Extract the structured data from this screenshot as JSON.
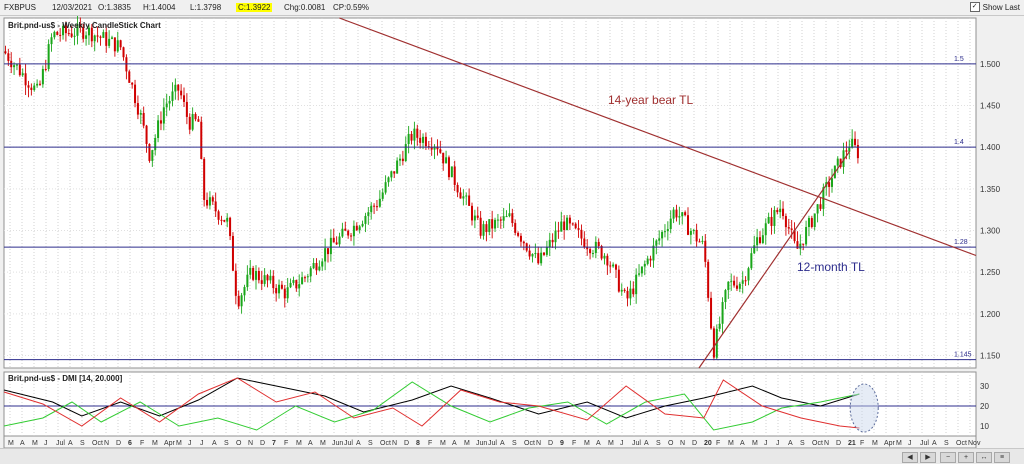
{
  "header": {
    "symbol": "FXBPUS",
    "date": "12/03/2021",
    "open": "O:1.3835",
    "high": "H:1.4004",
    "low": "L:1.3798",
    "close": "C:1.3922",
    "change": "Chg:0.0081",
    "change_pct": "CP:0.59%",
    "show_last_label": "Show Last",
    "show_last_checked": true
  },
  "chart_data": [
    {
      "type": "candlestick",
      "title": "Brit.pnd-us$ - Weekly CandleStick Chart",
      "ylim": [
        1.135,
        1.555
      ],
      "y_ticks": [
        1.15,
        1.2,
        1.25,
        1.3,
        1.35,
        1.4,
        1.45,
        1.5
      ],
      "y_tick_labels": [
        "1.150",
        "1.200",
        "1.250",
        "1.300",
        "1.350",
        "1.400",
        "1.450",
        "1.500"
      ],
      "horizontal_levels": [
        {
          "label": "1.5",
          "value": 1.5
        },
        {
          "label": "1.4",
          "value": 1.4
        },
        {
          "label": "1.28",
          "value": 1.28
        },
        {
          "label": "1.145",
          "value": 1.145
        }
      ],
      "annotations": [
        {
          "text": "14-year bear TL",
          "line_from": [
            0.345,
            1.555
          ],
          "line_to": [
            1.0,
            1.27
          ]
        },
        {
          "text": "12-month TL",
          "line_from": [
            0.715,
            1.135
          ],
          "line_to": [
            0.87,
            1.395
          ]
        }
      ],
      "weeks": 297,
      "price_path": [
        [
          0,
          1.515
        ],
        [
          0.035,
          1.465
        ],
        [
          0.05,
          1.535
        ],
        [
          0.085,
          1.54
        ],
        [
          0.12,
          1.52
        ],
        [
          0.14,
          1.44
        ],
        [
          0.15,
          1.39
        ],
        [
          0.165,
          1.45
        ],
        [
          0.18,
          1.47
        ],
        [
          0.19,
          1.43
        ],
        [
          0.2,
          1.43
        ],
        [
          0.205,
          1.34
        ],
        [
          0.23,
          1.31
        ],
        [
          0.24,
          1.215
        ],
        [
          0.255,
          1.25
        ],
        [
          0.29,
          1.225
        ],
        [
          0.31,
          1.245
        ],
        [
          0.33,
          1.275
        ],
        [
          0.36,
          1.305
        ],
        [
          0.385,
          1.335
        ],
        [
          0.42,
          1.415
        ],
        [
          0.445,
          1.405
        ],
        [
          0.455,
          1.38
        ],
        [
          0.49,
          1.3
        ],
        [
          0.52,
          1.315
        ],
        [
          0.55,
          1.26
        ],
        [
          0.575,
          1.31
        ],
        [
          0.6,
          1.285
        ],
        [
          0.62,
          1.27
        ],
        [
          0.64,
          1.215
        ],
        [
          0.66,
          1.26
        ],
        [
          0.69,
          1.325
        ],
        [
          0.71,
          1.295
        ],
        [
          0.72,
          1.28
        ],
        [
          0.73,
          1.155
        ],
        [
          0.745,
          1.235
        ],
        [
          0.76,
          1.24
        ],
        [
          0.775,
          1.29
        ],
        [
          0.8,
          1.33
        ],
        [
          0.815,
          1.275
        ],
        [
          0.83,
          1.31
        ],
        [
          0.85,
          1.36
        ],
        [
          0.87,
          1.405
        ],
        [
          0.88,
          1.392
        ]
      ]
    },
    {
      "type": "line",
      "title": "Brit.pnd-us$ - DMI [14, 20.000]",
      "ylim": [
        5,
        37
      ],
      "y_ticks": [
        10,
        20,
        30
      ],
      "y_tick_labels": [
        "10",
        "20",
        "30"
      ],
      "reference_level": 20,
      "series": [
        {
          "key": "adx",
          "color": "#000000",
          "points": [
            [
              0,
              28
            ],
            [
              0.05,
              22
            ],
            [
              0.08,
              15
            ],
            [
              0.12,
              22
            ],
            [
              0.16,
              15
            ],
            [
              0.2,
              23
            ],
            [
              0.24,
              34
            ],
            [
              0.28,
              30
            ],
            [
              0.33,
              25
            ],
            [
              0.37,
              17
            ],
            [
              0.42,
              23
            ],
            [
              0.46,
              30
            ],
            [
              0.5,
              24
            ],
            [
              0.55,
              16
            ],
            [
              0.6,
              22
            ],
            [
              0.64,
              14
            ],
            [
              0.68,
              20
            ],
            [
              0.72,
              24
            ],
            [
              0.77,
              30
            ],
            [
              0.8,
              24
            ],
            [
              0.84,
              20
            ],
            [
              0.88,
              26
            ]
          ]
        },
        {
          "key": "plus_di",
          "color": "#33cc33",
          "points": [
            [
              0,
              10
            ],
            [
              0.04,
              14
            ],
            [
              0.07,
              22
            ],
            [
              0.1,
              12
            ],
            [
              0.14,
              22
            ],
            [
              0.18,
              10
            ],
            [
              0.22,
              14
            ],
            [
              0.26,
              8
            ],
            [
              0.3,
              20
            ],
            [
              0.34,
              12
            ],
            [
              0.38,
              18
            ],
            [
              0.42,
              32
            ],
            [
              0.46,
              20
            ],
            [
              0.5,
              12
            ],
            [
              0.54,
              19
            ],
            [
              0.58,
              22
            ],
            [
              0.62,
              11
            ],
            [
              0.66,
              22
            ],
            [
              0.7,
              26
            ],
            [
              0.73,
              8
            ],
            [
              0.77,
              12
            ],
            [
              0.8,
              19
            ],
            [
              0.84,
              22
            ],
            [
              0.88,
              26
            ]
          ]
        },
        {
          "key": "minus_di",
          "color": "#e03030",
          "points": [
            [
              0,
              27
            ],
            [
              0.04,
              21
            ],
            [
              0.08,
              10
            ],
            [
              0.12,
              24
            ],
            [
              0.16,
              12
            ],
            [
              0.2,
              26
            ],
            [
              0.24,
              34
            ],
            [
              0.28,
              22
            ],
            [
              0.32,
              27
            ],
            [
              0.36,
              14
            ],
            [
              0.4,
              19
            ],
            [
              0.43,
              10
            ],
            [
              0.47,
              28
            ],
            [
              0.51,
              22
            ],
            [
              0.55,
              20
            ],
            [
              0.6,
              13
            ],
            [
              0.64,
              30
            ],
            [
              0.68,
              16
            ],
            [
              0.72,
              14
            ],
            [
              0.74,
              33
            ],
            [
              0.78,
              20
            ],
            [
              0.82,
              14
            ],
            [
              0.86,
              10
            ],
            [
              0.88,
              9
            ]
          ]
        }
      ]
    }
  ],
  "x_axis": {
    "labels": [
      "M",
      "A",
      "M",
      "J",
      "Jul",
      "A",
      "S",
      "Oct",
      "N",
      "D",
      "6",
      "F",
      "M",
      "Apr",
      "M",
      "J",
      "J",
      "A",
      "S",
      "O",
      "N",
      "D",
      "7",
      "F",
      "M",
      "A",
      "M",
      "Jun",
      "Jul",
      "A",
      "S",
      "Oct",
      "N",
      "D",
      "8",
      "F",
      "M",
      "A",
      "M",
      "Jun",
      "Jul",
      "A",
      "S",
      "Oct",
      "N",
      "D",
      "9",
      "F",
      "M",
      "A",
      "M",
      "J",
      "Jul",
      "A",
      "S",
      "O",
      "N",
      "D",
      "20",
      "F",
      "M",
      "A",
      "M",
      "J",
      "J",
      "A",
      "S",
      "Oct",
      "N",
      "D",
      "21",
      "F",
      "M",
      "Apr",
      "M",
      "J",
      "Jul",
      "A",
      "S",
      "Oct",
      "Nov"
    ],
    "bold": [
      "6",
      "7",
      "8",
      "9",
      "20",
      "21"
    ]
  }
}
